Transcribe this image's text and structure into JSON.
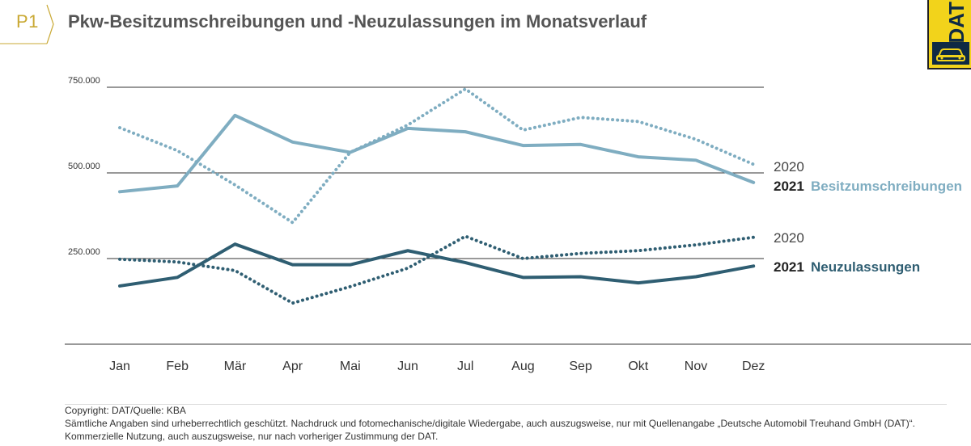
{
  "header": {
    "page_tag": "P1",
    "title": "Pkw-Besitzumschreibungen und -Neuzulassungen im Monatsverlauf",
    "logo_text": "DAT"
  },
  "colors": {
    "besitz": "#7fadc1",
    "neu": "#2f5e72",
    "accent": "#c9a934",
    "logo_bg": "#f2d31b"
  },
  "chart_data": {
    "type": "line",
    "categories": [
      "Jan",
      "Feb",
      "Mär",
      "Apr",
      "Mai",
      "Jun",
      "Jul",
      "Aug",
      "Sep",
      "Okt",
      "Nov",
      "Dez"
    ],
    "yticks": [
      250000,
      500000,
      750000
    ],
    "ytick_labels": [
      "250.000",
      "500.000",
      "750.000"
    ],
    "ylim": [
      0,
      800000
    ],
    "series": [
      {
        "group": "besitz",
        "year": "2021",
        "style": "solid",
        "values": [
          445000,
          462000,
          668000,
          590000,
          560000,
          630000,
          620000,
          580000,
          583000,
          547000,
          537000,
          472000
        ]
      },
      {
        "group": "besitz",
        "year": "2020",
        "style": "dotted",
        "values": [
          632000,
          565000,
          465000,
          355000,
          560000,
          640000,
          745000,
          625000,
          662000,
          650000,
          598000,
          525000
        ]
      },
      {
        "group": "neu",
        "year": "2021",
        "style": "solid",
        "values": [
          170000,
          195000,
          292000,
          232000,
          232000,
          273000,
          238000,
          195000,
          197000,
          179000,
          197000,
          228000
        ]
      },
      {
        "group": "neu",
        "year": "2020",
        "style": "dotted",
        "values": [
          248000,
          240000,
          215000,
          120000,
          168000,
          222000,
          315000,
          250000,
          265000,
          273000,
          290000,
          312000
        ]
      }
    ],
    "labels": {
      "besitz_2020": "2020",
      "besitz_2021": "2021",
      "besitz_name": "Besitzumschreibungen",
      "neu_2020": "2020",
      "neu_2021": "2021",
      "neu_name": "Neuzulassungen"
    }
  },
  "footer": {
    "line1": "Copyright: DAT/Quelle: KBA",
    "line2": "Sämtliche Angaben sind urheberrechtlich geschützt. Nachdruck und fotomechanische/digitale Wiedergabe, auch auszugsweise, nur mit Quellenangabe „Deutsche Automobil Treuhand GmbH (DAT)“.",
    "line3": "Kommerzielle Nutzung, auch auszugsweise, nur nach vorheriger Zustimmung der DAT."
  }
}
